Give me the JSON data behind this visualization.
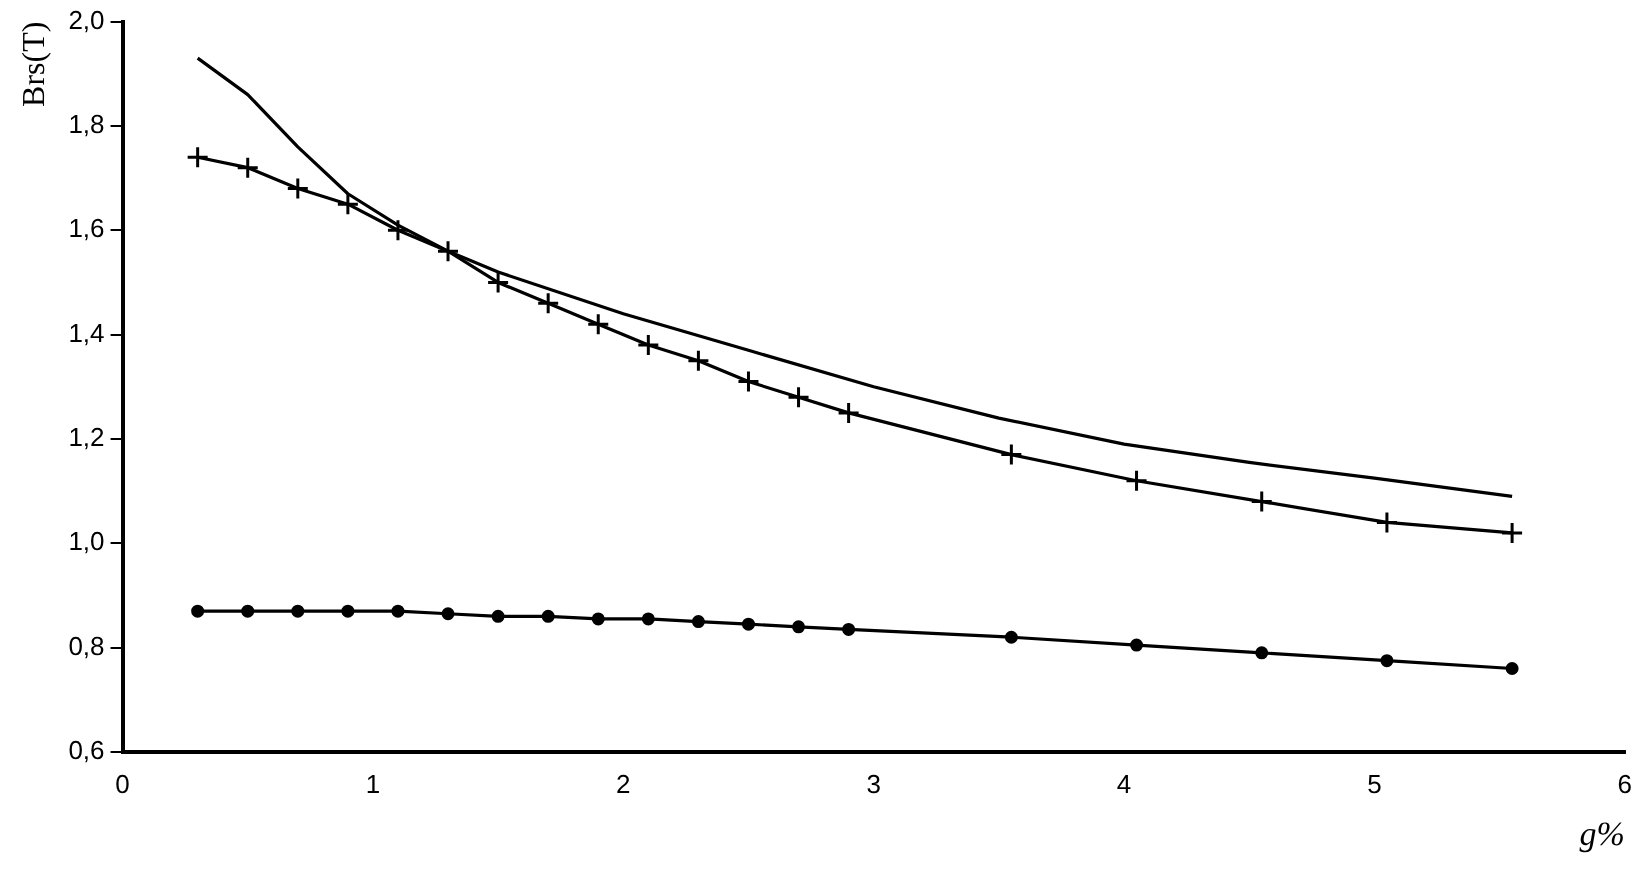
{
  "chart_data": {
    "type": "line",
    "xlabel": "g%",
    "ylabel": "Brs(T)",
    "xlim": [
      0,
      6
    ],
    "xticks": [
      0,
      1,
      2,
      3,
      4,
      5,
      6
    ],
    "ylim": [
      0.6,
      2.0
    ],
    "yticks": [
      {
        "value": 0.6,
        "label": "0,6"
      },
      {
        "value": 0.8,
        "label": "0,8"
      },
      {
        "value": 1.0,
        "label": "1,0"
      },
      {
        "value": 1.2,
        "label": "1,2"
      },
      {
        "value": 1.4,
        "label": "1,4"
      },
      {
        "value": 1.6,
        "label": "1,6"
      },
      {
        "value": 1.8,
        "label": "1,8"
      },
      {
        "value": 2.0,
        "label": "2,0"
      }
    ],
    "grid": false,
    "legend": false,
    "line_style": "solid",
    "series": [
      {
        "color": "#000000",
        "marker": "circle",
        "x": [
          0.3,
          0.5,
          0.7,
          0.9,
          1.1,
          1.3,
          1.5,
          1.7,
          1.9,
          2.1,
          2.3,
          2.5,
          2.7,
          2.9,
          3.55,
          4.05,
          4.55,
          5.05,
          5.55
        ],
        "values": [
          0.87,
          0.87,
          0.87,
          0.87,
          0.87,
          0.865,
          0.86,
          0.86,
          0.855,
          0.855,
          0.85,
          0.845,
          0.84,
          0.835,
          0.82,
          0.805,
          0.79,
          0.775,
          0.76
        ]
      },
      {
        "color": "#000000",
        "marker": "cross",
        "x": [
          0.3,
          0.5,
          0.7,
          0.9,
          1.1,
          1.3,
          1.5,
          1.7,
          1.9,
          2.1,
          2.3,
          2.5,
          2.7,
          2.9,
          3.55,
          4.05,
          4.55,
          5.05,
          5.55
        ],
        "values": [
          1.74,
          1.72,
          1.68,
          1.65,
          1.6,
          1.56,
          1.5,
          1.46,
          1.42,
          1.38,
          1.35,
          1.31,
          1.28,
          1.25,
          1.17,
          1.12,
          1.08,
          1.04,
          1.02
        ]
      },
      {
        "color": "#000000",
        "marker": "none",
        "x": [
          0.3,
          0.5,
          0.7,
          0.9,
          1.1,
          1.3,
          1.5,
          2.0,
          2.5,
          3.0,
          3.5,
          4.0,
          4.5,
          5.0,
          5.55
        ],
        "values": [
          1.93,
          1.86,
          1.76,
          1.67,
          1.61,
          1.56,
          1.52,
          1.44,
          1.37,
          1.3,
          1.24,
          1.19,
          1.155,
          1.125,
          1.09
        ]
      }
    ]
  }
}
